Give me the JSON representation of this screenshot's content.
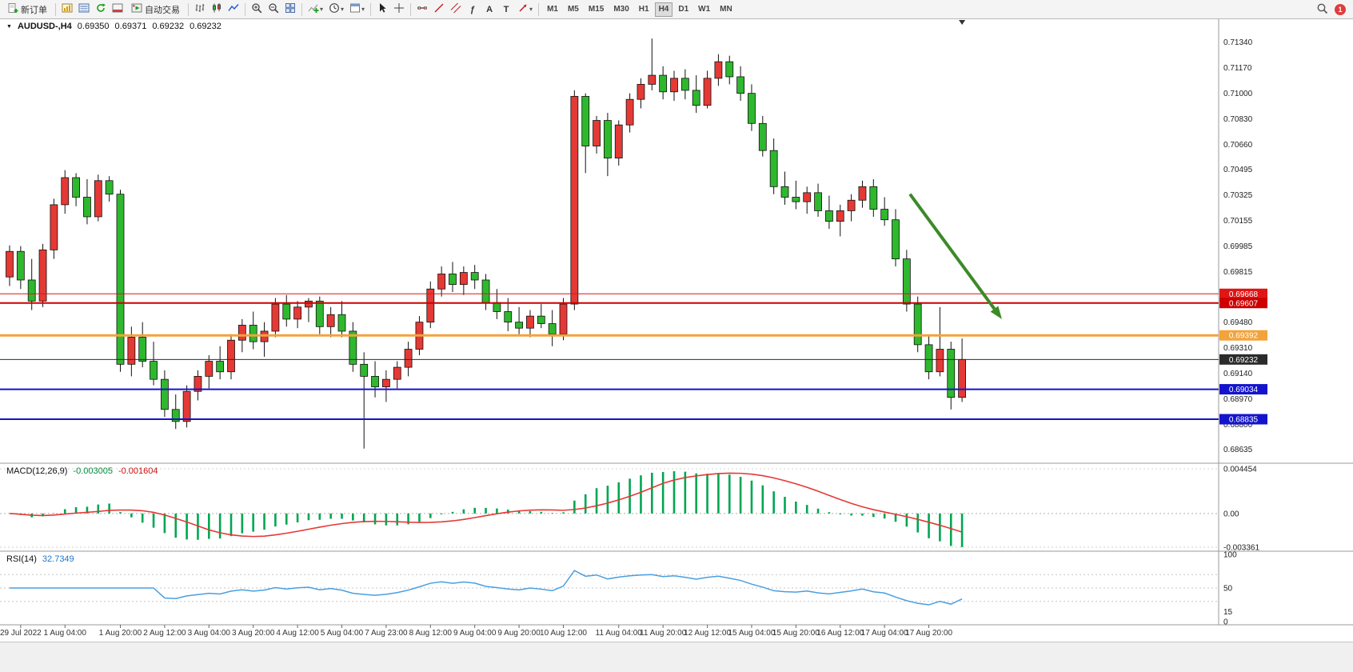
{
  "toolbar": {
    "new_order_label": "新订单",
    "autotrade_label": "自动交易",
    "timeframes": [
      "M1",
      "M5",
      "M15",
      "M30",
      "H1",
      "H4",
      "D1",
      "W1",
      "MN"
    ],
    "active_timeframe": "H4",
    "notification_count": "1"
  },
  "icons": {
    "symbol_marker": "▼",
    "dropdown": "▾",
    "text_tool": "A",
    "label_tool": "T",
    "fib_tool": "ƒ"
  },
  "chart": {
    "symbol_period": "AUDUSD-,H4",
    "ohlc": {
      "open": "0.69350",
      "high": "0.69371",
      "low": "0.69232",
      "close": "0.69232"
    }
  },
  "price_axis": {
    "labels": [
      "0.71340",
      "0.71170",
      "0.71000",
      "0.70830",
      "0.70660",
      "0.70495",
      "0.70325",
      "0.70155",
      "0.69985",
      "0.69815",
      "0.69645",
      "0.69480",
      "0.69310",
      "0.69140",
      "0.68970",
      "0.68800",
      "0.68635"
    ]
  },
  "hlines": [
    {
      "price": 0.69668,
      "label": "0.69668",
      "color": "#e01515",
      "width": 1
    },
    {
      "price": 0.69607,
      "label": "0.69607",
      "color": "#cc0000",
      "width": 2
    },
    {
      "price": 0.69392,
      "label": "0.69392",
      "color": "#f2a33c",
      "width": 3
    },
    {
      "price": 0.69232,
      "label": "0.69232",
      "color": "#2b2b2b",
      "width": 1
    },
    {
      "price": 0.69034,
      "label": "0.69034",
      "color": "#1414cc",
      "width": 2
    },
    {
      "price": 0.68835,
      "label": "0.68835",
      "color": "#1414cc",
      "width": 2
    }
  ],
  "arrow": {
    "from_index": 81.3,
    "from_price": 0.7033,
    "to_index": 89.6,
    "to_price": 0.695,
    "color": "#3c8a28"
  },
  "chart_data": {
    "type": "candlestick",
    "symbol": "AUDUSD",
    "timeframe": "H4",
    "up_color": "#e53935",
    "down_color": "#2eb82e",
    "price_range": [
      0.6858,
      0.7145
    ],
    "candles": [
      [
        0.6978,
        0.6999,
        0.6972,
        0.6995
      ],
      [
        0.6995,
        0.69985,
        0.697,
        0.6976
      ],
      [
        0.6976,
        0.699,
        0.6956,
        0.6962
      ],
      [
        0.6962,
        0.7,
        0.6958,
        0.6996
      ],
      [
        0.6996,
        0.703,
        0.699,
        0.7026
      ],
      [
        0.7026,
        0.7049,
        0.702,
        0.7044
      ],
      [
        0.7044,
        0.7047,
        0.7025,
        0.7031
      ],
      [
        0.7031,
        0.7043,
        0.7013,
        0.7018
      ],
      [
        0.7018,
        0.7046,
        0.7015,
        0.7042
      ],
      [
        0.7042,
        0.7045,
        0.7028,
        0.7033
      ],
      [
        0.7033,
        0.7036,
        0.6915,
        0.692
      ],
      [
        0.692,
        0.6945,
        0.6912,
        0.6938
      ],
      [
        0.6938,
        0.6948,
        0.6918,
        0.6922
      ],
      [
        0.6922,
        0.6935,
        0.6906,
        0.691
      ],
      [
        0.691,
        0.6916,
        0.6885,
        0.689
      ],
      [
        0.689,
        0.69,
        0.6877,
        0.6882
      ],
      [
        0.6882,
        0.6906,
        0.6878,
        0.6902
      ],
      [
        0.6902,
        0.6916,
        0.6896,
        0.6912
      ],
      [
        0.6912,
        0.6926,
        0.6904,
        0.6922
      ],
      [
        0.6922,
        0.6932,
        0.691,
        0.6915
      ],
      [
        0.6915,
        0.694,
        0.691,
        0.6936
      ],
      [
        0.6936,
        0.695,
        0.6928,
        0.6946
      ],
      [
        0.6946,
        0.6955,
        0.693,
        0.6935
      ],
      [
        0.6935,
        0.6948,
        0.6925,
        0.6942
      ],
      [
        0.6942,
        0.6964,
        0.6938,
        0.696
      ],
      [
        0.696,
        0.6966,
        0.6945,
        0.695
      ],
      [
        0.695,
        0.6962,
        0.6944,
        0.6958
      ],
      [
        0.6958,
        0.6964,
        0.6948,
        0.6962
      ],
      [
        0.6962,
        0.6965,
        0.694,
        0.6945
      ],
      [
        0.6945,
        0.6958,
        0.6938,
        0.6953
      ],
      [
        0.6953,
        0.6962,
        0.6938,
        0.6942
      ],
      [
        0.6942,
        0.6948,
        0.6915,
        0.692
      ],
      [
        0.692,
        0.6928,
        0.6864,
        0.6912
      ],
      [
        0.6912,
        0.6922,
        0.6898,
        0.6905
      ],
      [
        0.6905,
        0.6916,
        0.6895,
        0.691
      ],
      [
        0.691,
        0.6922,
        0.6904,
        0.6918
      ],
      [
        0.6918,
        0.6935,
        0.6912,
        0.693
      ],
      [
        0.693,
        0.6952,
        0.6926,
        0.6948
      ],
      [
        0.6948,
        0.6975,
        0.6944,
        0.697
      ],
      [
        0.697,
        0.6985,
        0.6965,
        0.698
      ],
      [
        0.698,
        0.6988,
        0.6968,
        0.6973
      ],
      [
        0.6973,
        0.6985,
        0.6966,
        0.6981
      ],
      [
        0.6981,
        0.6986,
        0.697,
        0.6976
      ],
      [
        0.6976,
        0.698,
        0.6956,
        0.6961
      ],
      [
        0.6961,
        0.697,
        0.695,
        0.6955
      ],
      [
        0.6955,
        0.6964,
        0.6942,
        0.6948
      ],
      [
        0.6948,
        0.6958,
        0.694,
        0.6944
      ],
      [
        0.6944,
        0.6956,
        0.6938,
        0.6952
      ],
      [
        0.6952,
        0.696,
        0.6944,
        0.6947
      ],
      [
        0.6947,
        0.6956,
        0.6932,
        0.694
      ],
      [
        0.694,
        0.6964,
        0.6936,
        0.696
      ],
      [
        0.696,
        0.7102,
        0.6956,
        0.7098
      ],
      [
        0.7098,
        0.71,
        0.7047,
        0.7065
      ],
      [
        0.7065,
        0.7085,
        0.706,
        0.7082
      ],
      [
        0.7082,
        0.7087,
        0.7045,
        0.7057
      ],
      [
        0.7057,
        0.7082,
        0.7052,
        0.7079
      ],
      [
        0.7079,
        0.71,
        0.7074,
        0.7096
      ],
      [
        0.7096,
        0.711,
        0.709,
        0.7106
      ],
      [
        0.7106,
        0.71364,
        0.7102,
        0.7112
      ],
      [
        0.7112,
        0.7118,
        0.7096,
        0.7101
      ],
      [
        0.7101,
        0.7115,
        0.7095,
        0.711
      ],
      [
        0.711,
        0.7116,
        0.7096,
        0.7102
      ],
      [
        0.7102,
        0.7112,
        0.7087,
        0.7092
      ],
      [
        0.7092,
        0.7115,
        0.709,
        0.711
      ],
      [
        0.711,
        0.7126,
        0.7105,
        0.7121
      ],
      [
        0.7121,
        0.7125,
        0.7106,
        0.7111
      ],
      [
        0.7111,
        0.7118,
        0.7095,
        0.71
      ],
      [
        0.71,
        0.7106,
        0.7075,
        0.708
      ],
      [
        0.708,
        0.7085,
        0.7058,
        0.7062
      ],
      [
        0.7062,
        0.707,
        0.7033,
        0.7038
      ],
      [
        0.7038,
        0.7048,
        0.7026,
        0.7031
      ],
      [
        0.7031,
        0.7042,
        0.7023,
        0.7028
      ],
      [
        0.7028,
        0.7038,
        0.702,
        0.7034
      ],
      [
        0.7034,
        0.704,
        0.7018,
        0.7022
      ],
      [
        0.7022,
        0.7032,
        0.701,
        0.7015
      ],
      [
        0.7015,
        0.7026,
        0.7005,
        0.7022
      ],
      [
        0.7022,
        0.7033,
        0.7015,
        0.7029
      ],
      [
        0.7029,
        0.7042,
        0.7024,
        0.7038
      ],
      [
        0.7038,
        0.7043,
        0.7018,
        0.7023
      ],
      [
        0.7023,
        0.7031,
        0.7012,
        0.7016
      ],
      [
        0.7016,
        0.7023,
        0.6985,
        0.699
      ],
      [
        0.699,
        0.6996,
        0.6955,
        0.696
      ],
      [
        0.696,
        0.6965,
        0.6928,
        0.6933
      ],
      [
        0.6933,
        0.6939,
        0.691,
        0.6915
      ],
      [
        0.6915,
        0.6958,
        0.6912,
        0.693
      ],
      [
        0.693,
        0.6935,
        0.689,
        0.6898
      ],
      [
        0.6898,
        0.69371,
        0.6895,
        0.69232
      ]
    ],
    "x_labels": [
      {
        "i": 1,
        "t": "29 Jul 2022"
      },
      {
        "i": 5,
        "t": "1 Aug 04:00"
      },
      {
        "i": 10,
        "t": "1 Aug 20:00"
      },
      {
        "i": 14,
        "t": "2 Aug 12:00"
      },
      {
        "i": 18,
        "t": "3 Aug 04:00"
      },
      {
        "i": 22,
        "t": "3 Aug 20:00"
      },
      {
        "i": 26,
        "t": "4 Aug 12:00"
      },
      {
        "i": 30,
        "t": "5 Aug 04:00"
      },
      {
        "i": 34,
        "t": "7 Aug 23:00"
      },
      {
        "i": 38,
        "t": "8 Aug 12:00"
      },
      {
        "i": 42,
        "t": "9 Aug 04:00"
      },
      {
        "i": 46,
        "t": "9 Aug 20:00"
      },
      {
        "i": 50,
        "t": "10 Aug 12:00"
      },
      {
        "i": 55,
        "t": "11 Aug 04:00"
      },
      {
        "i": 59,
        "t": "11 Aug 20:00"
      },
      {
        "i": 63,
        "t": "12 Aug 12:00"
      },
      {
        "i": 67,
        "t": "15 Aug 04:00"
      },
      {
        "i": 71,
        "t": "15 Aug 20:00"
      },
      {
        "i": 75,
        "t": "16 Aug 12:00"
      },
      {
        "i": 79,
        "t": "17 Aug 04:00"
      },
      {
        "i": 83,
        "t": "17 Aug 20:00"
      }
    ],
    "macd": {
      "title": "MACD(12,26,9)",
      "main_value": "-0.003005",
      "signal_value": "-0.001604",
      "axis_labels": [
        "0.004454",
        "0.00",
        "-0.003361"
      ],
      "axis_values": [
        0.004454,
        0,
        -0.003361
      ],
      "histogram_color": "#00a651",
      "signal_color": "#e53935"
    },
    "rsi": {
      "title": "RSI(14)",
      "value": "32.7349",
      "axis_labels": [
        [
          "100",
          100
        ],
        [
          "50",
          50
        ],
        [
          "15",
          15
        ],
        [
          "0",
          0
        ]
      ],
      "levels": [
        70,
        50,
        30
      ],
      "line_color": "#4a9fe0"
    }
  }
}
